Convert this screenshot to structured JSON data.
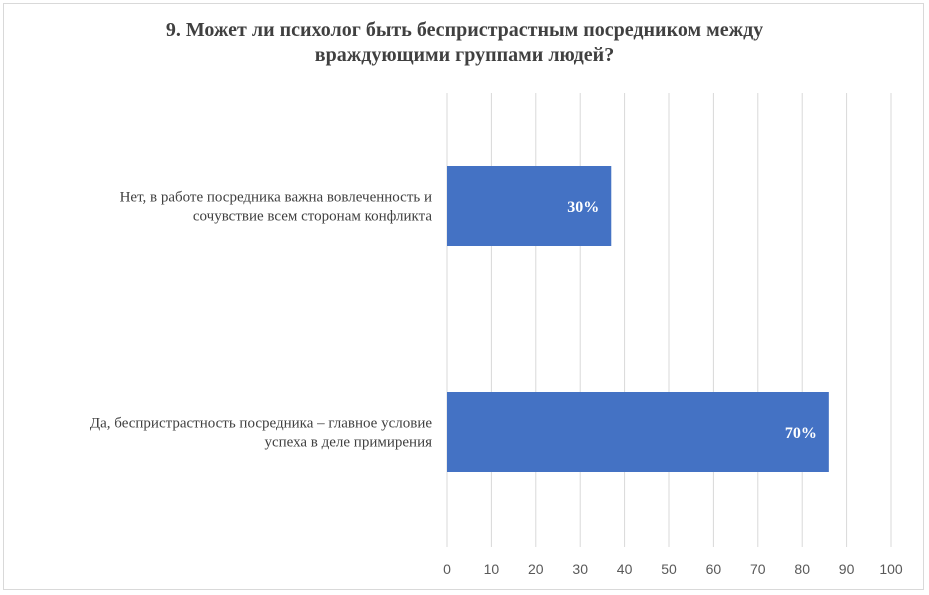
{
  "chart_data": {
    "type": "bar",
    "orientation": "horizontal",
    "title_lines": [
      "9. Может ли психолог быть беспристрастным посредником между",
      "враждующими группами людей?"
    ],
    "categories": [
      [
        "Нет, в работе посредника важна вовлеченность и",
        "сочувствие всем сторонам конфликта"
      ],
      [
        "Да, беспристрастность посредника – главное условие",
        "успеха в деле примирения"
      ]
    ],
    "values": [
      37,
      86
    ],
    "data_labels": [
      "30%",
      "70%"
    ],
    "xlim": [
      0,
      100
    ],
    "xticks": [
      0,
      10,
      20,
      30,
      40,
      50,
      60,
      70,
      80,
      90,
      100
    ],
    "grid": "vertical",
    "legend": "none",
    "colors": {
      "bar": "#4472c4",
      "grid": "#d9d9d9",
      "text": "#404040",
      "tick_text": "#595959",
      "data_label": "#ffffff"
    }
  }
}
